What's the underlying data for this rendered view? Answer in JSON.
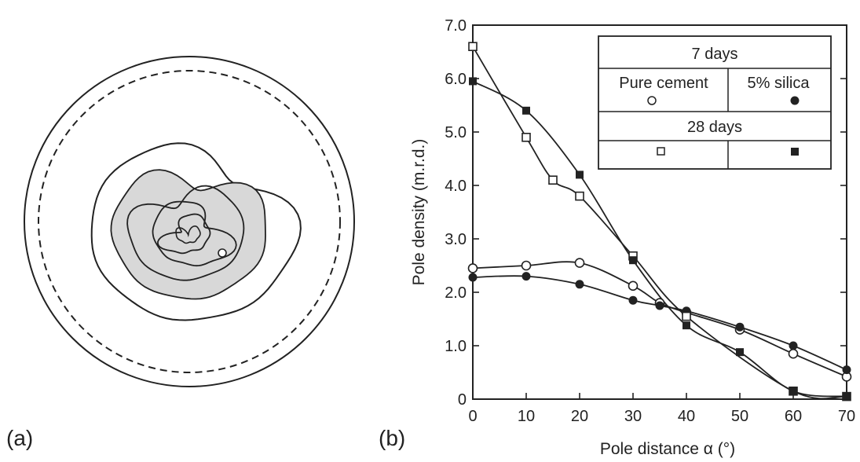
{
  "panels": {
    "a_label": "(a)",
    "b_label": "(b)"
  },
  "pole_figure": {
    "contours": 5,
    "shaded_levels": [
      2
    ]
  },
  "chart_data": {
    "type": "line",
    "title": "",
    "xlabel": "Pole distance α (°)",
    "ylabel": "Pole density (m.r.d.)",
    "xlim": [
      0,
      70
    ],
    "ylim": [
      0,
      7
    ],
    "x_ticks": [
      "0",
      "10",
      "20",
      "30",
      "40",
      "50",
      "60",
      "70"
    ],
    "y_ticks": [
      "0",
      "1.0",
      "2.0",
      "3.0",
      "4.0",
      "5.0",
      "6.0",
      "7.0"
    ],
    "grid": false,
    "legend_position": "top-right",
    "legend": {
      "header_7": "7 days",
      "header_28": "28 days",
      "col_pure": "Pure cement",
      "col_silica": "5% silica"
    },
    "series": [
      {
        "key": "s7_pure",
        "marker": "open-circle",
        "age": "7 days",
        "composition": "Pure cement",
        "x": [
          0,
          10,
          20,
          30,
          35,
          40,
          50,
          60,
          70
        ],
        "y": [
          2.45,
          2.5,
          2.55,
          2.12,
          1.8,
          1.62,
          1.3,
          0.85,
          0.42
        ]
      },
      {
        "key": "s7_silica",
        "marker": "filled-circle",
        "age": "7 days",
        "composition": "5% silica",
        "x": [
          0,
          10,
          20,
          30,
          35,
          40,
          50,
          60,
          70
        ],
        "y": [
          2.28,
          2.3,
          2.15,
          1.85,
          1.75,
          1.65,
          1.35,
          1.0,
          0.55
        ]
      },
      {
        "key": "s28_pure",
        "marker": "open-square",
        "age": "28 days",
        "composition": "Pure cement",
        "x": [
          0,
          10,
          15,
          20,
          30,
          40,
          60,
          70
        ],
        "y": [
          6.6,
          4.9,
          4.1,
          3.8,
          2.68,
          1.55,
          0.15,
          0.05
        ]
      },
      {
        "key": "s28_silica",
        "marker": "filled-square",
        "age": "28 days",
        "composition": "5% silica",
        "x": [
          0,
          10,
          20,
          30,
          40,
          50,
          60,
          70
        ],
        "y": [
          5.95,
          5.4,
          4.2,
          2.6,
          1.38,
          0.88,
          0.15,
          0.05
        ]
      }
    ]
  }
}
